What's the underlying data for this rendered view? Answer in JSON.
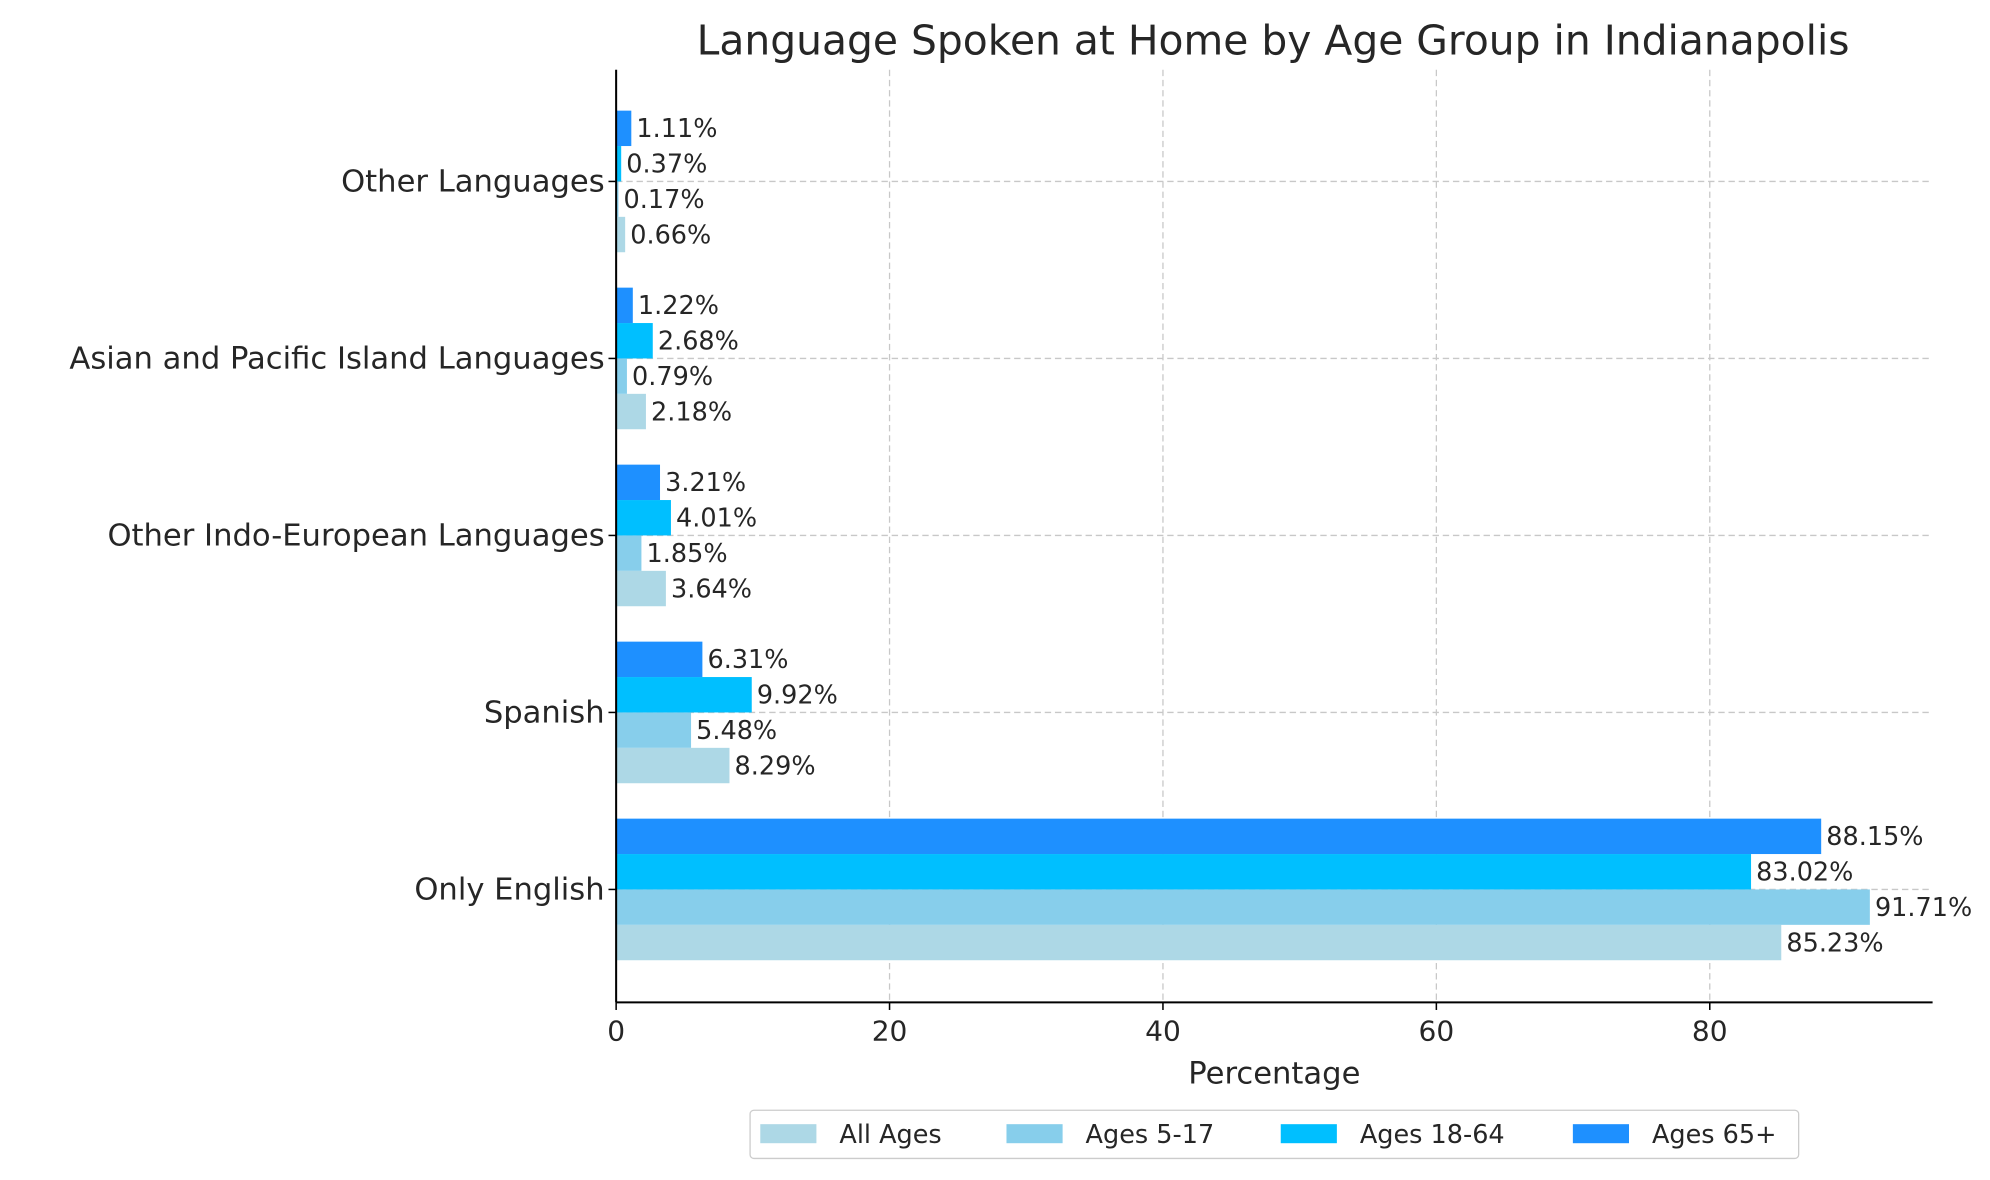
{
  "chart_data": {
    "type": "bar",
    "orientation": "horizontal",
    "title": "Language Spoken at Home by Age Group in Indianapolis",
    "xlabel": "Percentage",
    "ylabel": "",
    "xlim": [
      0,
      96.3
    ],
    "xticks": [
      0,
      20,
      40,
      60,
      80
    ],
    "grid": true,
    "legend_position": "bottom-center",
    "categories": [
      "Only English",
      "Spanish",
      "Other Indo-European Languages",
      "Asian and Pacific Island Languages",
      "Other Languages"
    ],
    "series": [
      {
        "name": "All Ages",
        "color": "#ADD8E6",
        "values": [
          85.23,
          8.29,
          3.64,
          2.18,
          0.66
        ]
      },
      {
        "name": "Ages 5-17",
        "color": "#87CEEB",
        "values": [
          91.71,
          5.48,
          1.85,
          0.79,
          0.17
        ]
      },
      {
        "name": "Ages 18-64",
        "color": "#00BFFF",
        "values": [
          83.02,
          9.92,
          4.01,
          2.68,
          0.37
        ]
      },
      {
        "name": "Ages 65+",
        "color": "#1E90FF",
        "values": [
          88.15,
          6.31,
          3.21,
          1.22,
          1.11
        ]
      }
    ],
    "value_label_format": "{v}%"
  }
}
